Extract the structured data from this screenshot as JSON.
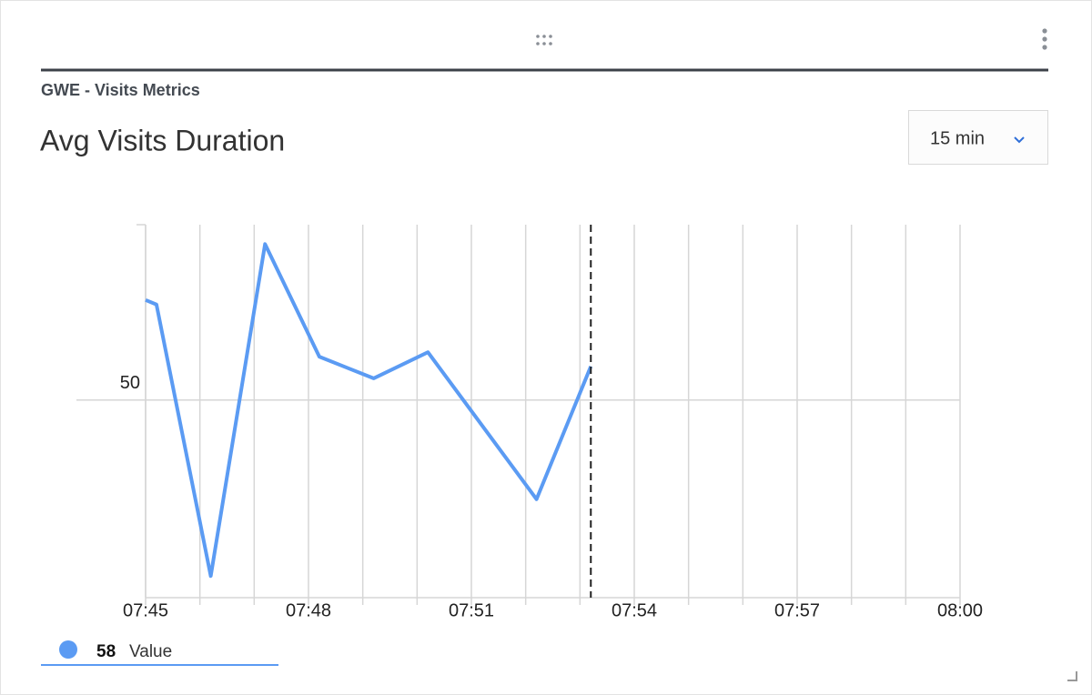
{
  "header": {
    "subtitle": "GWE - Visits Metrics",
    "title": "Avg Visits Duration"
  },
  "dropdown": {
    "label": "15 min"
  },
  "legend": {
    "value": "58"
  },
  "chart_data": {
    "type": "line",
    "x": [
      45,
      45.2,
      46.2,
      47.2,
      48.2,
      49.2,
      50.2,
      52.2,
      53.2
    ],
    "series": [
      {
        "name": "Value",
        "color": "#5b9bf3",
        "values": [
          63.4,
          62.8,
          26.4,
          70.9,
          55.8,
          52.9,
          56.4,
          36.7,
          54.5
        ]
      }
    ],
    "xlim": [
      45,
      60
    ],
    "xticks": [
      {
        "value": 45,
        "label": "07:45"
      },
      {
        "value": 48,
        "label": "07:48"
      },
      {
        "value": 51,
        "label": "07:51"
      },
      {
        "value": 54,
        "label": "07:54"
      },
      {
        "value": 57,
        "label": "07:57"
      },
      {
        "value": 60,
        "label": "08:00"
      }
    ],
    "x_gridlines": [
      45,
      46,
      47,
      48,
      49,
      50,
      51,
      52,
      53,
      54,
      55,
      56,
      57,
      58,
      59,
      60
    ],
    "ylim": [
      23.5,
      73.5
    ],
    "yticks": [
      50
    ],
    "marker_x": 53.2
  }
}
